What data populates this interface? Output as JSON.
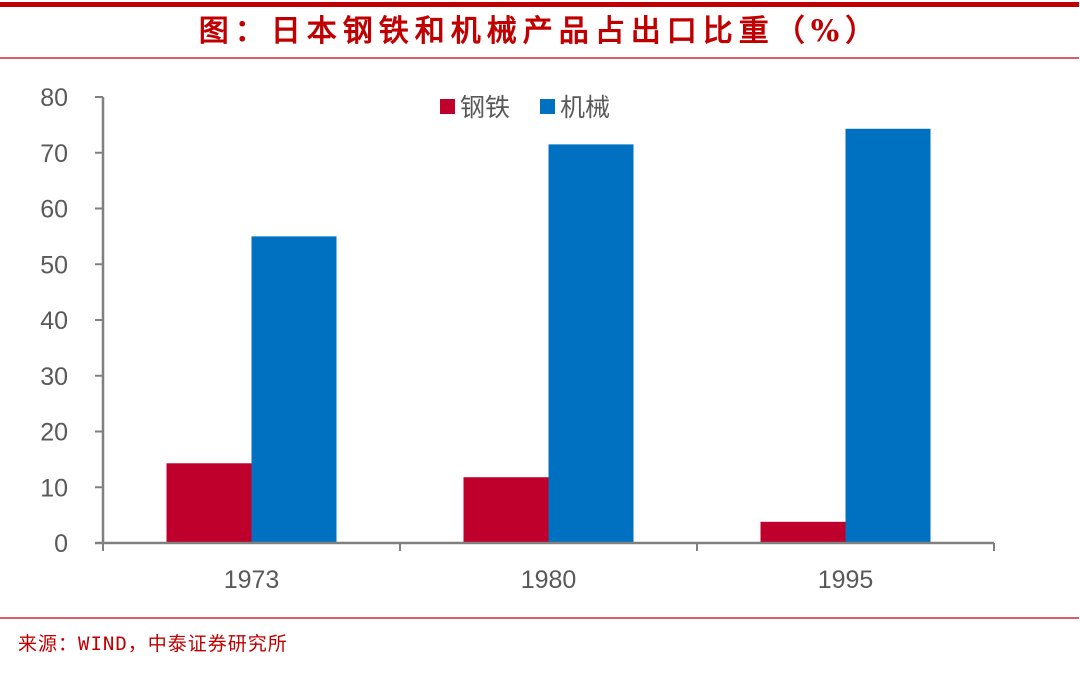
{
  "header": {
    "title": "图：日本钢铁和机械产品占出口比重（%）"
  },
  "footer": {
    "source": "来源：WIND，中泰证券研究所"
  },
  "colors": {
    "steel": "#c0002c",
    "machinery": "#0070c0",
    "accent": "#c00000",
    "axis": "#808080",
    "tick_text": "#595959"
  },
  "chart_data": {
    "type": "bar",
    "title": "图：日本钢铁和机械产品占出口比重（%）",
    "xlabel": "",
    "ylabel": "",
    "categories": [
      "1973",
      "1980",
      "1995"
    ],
    "series": [
      {
        "name": "钢铁",
        "color": "#c0002c",
        "values": [
          14.3,
          11.8,
          3.8
        ]
      },
      {
        "name": "机械",
        "color": "#0070c0",
        "values": [
          55.0,
          71.5,
          74.3
        ]
      }
    ],
    "ylim": [
      0,
      80
    ],
    "yticks": [
      0,
      10,
      20,
      30,
      40,
      50,
      60,
      70,
      80
    ],
    "grid": false,
    "legend_position": "top-center",
    "source": "来源：WIND，中泰证券研究所"
  }
}
